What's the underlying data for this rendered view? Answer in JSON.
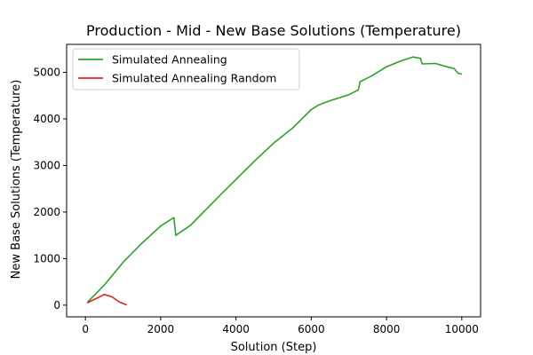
{
  "chart_data": {
    "type": "line",
    "title": "Production - Mid - New Base Solutions (Temperature)",
    "xlabel": "Solution (Step)",
    "ylabel": "New Base Solutions (Temperature)",
    "xlim": [
      -500,
      10500
    ],
    "ylim": [
      -250,
      5600
    ],
    "xticks": [
      0,
      2000,
      4000,
      6000,
      8000,
      10000
    ],
    "xtick_labels": [
      "0",
      "2000",
      "4000",
      "6000",
      "8000",
      "10000"
    ],
    "yticks": [
      0,
      1000,
      2000,
      3000,
      4000,
      5000
    ],
    "ytick_labels": [
      "0",
      "1000",
      "2000",
      "3000",
      "4000",
      "5000"
    ],
    "grid": false,
    "legend_position": "upper-left",
    "series": [
      {
        "name": "Simulated Annealing",
        "color": "#2ca02c",
        "points": [
          [
            50,
            60
          ],
          [
            500,
            430
          ],
          [
            1000,
            920
          ],
          [
            1500,
            1330
          ],
          [
            2000,
            1700
          ],
          [
            2350,
            1880
          ],
          [
            2400,
            1500
          ],
          [
            2800,
            1720
          ],
          [
            3200,
            2050
          ],
          [
            3600,
            2380
          ],
          [
            4000,
            2700
          ],
          [
            4500,
            3100
          ],
          [
            5000,
            3480
          ],
          [
            5500,
            3800
          ],
          [
            6000,
            4200
          ],
          [
            6200,
            4300
          ],
          [
            6500,
            4390
          ],
          [
            7000,
            4520
          ],
          [
            7250,
            4620
          ],
          [
            7300,
            4800
          ],
          [
            7600,
            4920
          ],
          [
            8000,
            5120
          ],
          [
            8400,
            5250
          ],
          [
            8700,
            5330
          ],
          [
            8900,
            5300
          ],
          [
            8950,
            5180
          ],
          [
            9300,
            5190
          ],
          [
            9600,
            5120
          ],
          [
            9800,
            5080
          ],
          [
            9900,
            4980
          ],
          [
            10000,
            4960
          ]
        ]
      },
      {
        "name": "Simulated Annealing Random",
        "color": "#d62728",
        "points": [
          [
            50,
            50
          ],
          [
            300,
            150
          ],
          [
            500,
            230
          ],
          [
            700,
            180
          ],
          [
            900,
            70
          ],
          [
            1100,
            5
          ]
        ]
      }
    ]
  }
}
